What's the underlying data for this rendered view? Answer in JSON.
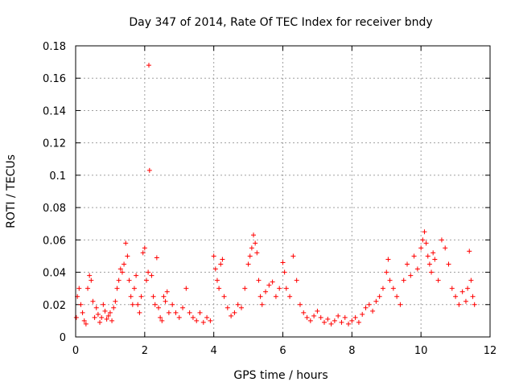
{
  "chart_data": {
    "type": "scatter",
    "title": "Day 347 of 2014, Rate Of TEC Index for receiver bndy",
    "xlabel": "GPS time / hours",
    "ylabel": "ROTI / TECUs",
    "xlim": [
      0,
      12
    ],
    "ylim": [
      0,
      0.18
    ],
    "xticks": [
      0,
      2,
      4,
      6,
      8,
      10,
      12
    ],
    "yticks": [
      0,
      0.02,
      0.04,
      0.06,
      0.08,
      0.1,
      0.12,
      0.14,
      0.16,
      0.18
    ],
    "xtick_labels": [
      "0",
      "2",
      "4",
      "6",
      "8",
      "10",
      "12"
    ],
    "ytick_labels": [
      "0",
      "0.02",
      "0.04",
      "0.06",
      "0.08",
      "0.1",
      "0.12",
      "0.14",
      "0.16",
      "0.18"
    ],
    "grid": true,
    "marker": "+",
    "color": "#ff0000",
    "series": [
      {
        "name": "ROTI",
        "points": [
          [
            0.02,
            0.012
          ],
          [
            0.05,
            0.025
          ],
          [
            0.1,
            0.03
          ],
          [
            0.15,
            0.02
          ],
          [
            0.2,
            0.015
          ],
          [
            0.25,
            0.01
          ],
          [
            0.3,
            0.008
          ],
          [
            0.35,
            0.03
          ],
          [
            0.4,
            0.038
          ],
          [
            0.45,
            0.035
          ],
          [
            0.5,
            0.022
          ],
          [
            0.55,
            0.012
          ],
          [
            0.6,
            0.018
          ],
          [
            0.65,
            0.014
          ],
          [
            0.7,
            0.009
          ],
          [
            0.75,
            0.012
          ],
          [
            0.8,
            0.02
          ],
          [
            0.85,
            0.016
          ],
          [
            0.9,
            0.011
          ],
          [
            0.95,
            0.013
          ],
          [
            1.0,
            0.015
          ],
          [
            1.05,
            0.01
          ],
          [
            1.1,
            0.018
          ],
          [
            1.15,
            0.022
          ],
          [
            1.2,
            0.03
          ],
          [
            1.25,
            0.035
          ],
          [
            1.3,
            0.042
          ],
          [
            1.35,
            0.04
          ],
          [
            1.4,
            0.045
          ],
          [
            1.45,
            0.058
          ],
          [
            1.5,
            0.05
          ],
          [
            1.55,
            0.035
          ],
          [
            1.6,
            0.025
          ],
          [
            1.65,
            0.02
          ],
          [
            1.7,
            0.03
          ],
          [
            1.75,
            0.038
          ],
          [
            1.8,
            0.02
          ],
          [
            1.85,
            0.015
          ],
          [
            1.9,
            0.025
          ],
          [
            1.95,
            0.052
          ],
          [
            2.0,
            0.055
          ],
          [
            2.05,
            0.035
          ],
          [
            2.1,
            0.04
          ],
          [
            2.12,
            0.168
          ],
          [
            2.14,
            0.103
          ],
          [
            2.2,
            0.038
          ],
          [
            2.25,
            0.025
          ],
          [
            2.3,
            0.02
          ],
          [
            2.35,
            0.049
          ],
          [
            2.4,
            0.018
          ],
          [
            2.45,
            0.012
          ],
          [
            2.5,
            0.01
          ],
          [
            2.55,
            0.025
          ],
          [
            2.6,
            0.022
          ],
          [
            2.65,
            0.028
          ],
          [
            2.7,
            0.015
          ],
          [
            2.8,
            0.02
          ],
          [
            2.9,
            0.015
          ],
          [
            3.0,
            0.012
          ],
          [
            3.1,
            0.018
          ],
          [
            3.2,
            0.03
          ],
          [
            3.3,
            0.015
          ],
          [
            3.4,
            0.012
          ],
          [
            3.5,
            0.01
          ],
          [
            3.6,
            0.015
          ],
          [
            3.7,
            0.009
          ],
          [
            3.8,
            0.012
          ],
          [
            3.9,
            0.01
          ],
          [
            4.0,
            0.05
          ],
          [
            4.05,
            0.042
          ],
          [
            4.1,
            0.035
          ],
          [
            4.15,
            0.03
          ],
          [
            4.2,
            0.045
          ],
          [
            4.25,
            0.048
          ],
          [
            4.3,
            0.025
          ],
          [
            4.4,
            0.018
          ],
          [
            4.5,
            0.013
          ],
          [
            4.6,
            0.015
          ],
          [
            4.7,
            0.02
          ],
          [
            4.8,
            0.018
          ],
          [
            4.9,
            0.03
          ],
          [
            5.0,
            0.045
          ],
          [
            5.05,
            0.05
          ],
          [
            5.1,
            0.055
          ],
          [
            5.15,
            0.063
          ],
          [
            5.2,
            0.058
          ],
          [
            5.25,
            0.052
          ],
          [
            5.3,
            0.035
          ],
          [
            5.35,
            0.025
          ],
          [
            5.4,
            0.02
          ],
          [
            5.5,
            0.028
          ],
          [
            5.6,
            0.032
          ],
          [
            5.7,
            0.034
          ],
          [
            5.8,
            0.025
          ],
          [
            5.9,
            0.03
          ],
          [
            6.0,
            0.046
          ],
          [
            6.05,
            0.04
          ],
          [
            6.1,
            0.03
          ],
          [
            6.2,
            0.025
          ],
          [
            6.3,
            0.05
          ],
          [
            6.4,
            0.035
          ],
          [
            6.5,
            0.02
          ],
          [
            6.6,
            0.015
          ],
          [
            6.7,
            0.012
          ],
          [
            6.8,
            0.01
          ],
          [
            6.9,
            0.013
          ],
          [
            7.0,
            0.016
          ],
          [
            7.1,
            0.012
          ],
          [
            7.2,
            0.009
          ],
          [
            7.3,
            0.011
          ],
          [
            7.4,
            0.008
          ],
          [
            7.5,
            0.01
          ],
          [
            7.6,
            0.013
          ],
          [
            7.7,
            0.009
          ],
          [
            7.8,
            0.012
          ],
          [
            7.9,
            0.008
          ],
          [
            8.0,
            0.01
          ],
          [
            8.1,
            0.012
          ],
          [
            8.2,
            0.009
          ],
          [
            8.3,
            0.014
          ],
          [
            8.4,
            0.018
          ],
          [
            8.5,
            0.02
          ],
          [
            8.6,
            0.016
          ],
          [
            8.7,
            0.022
          ],
          [
            8.8,
            0.025
          ],
          [
            8.9,
            0.03
          ],
          [
            9.0,
            0.04
          ],
          [
            9.05,
            0.048
          ],
          [
            9.1,
            0.035
          ],
          [
            9.2,
            0.03
          ],
          [
            9.3,
            0.025
          ],
          [
            9.4,
            0.02
          ],
          [
            9.5,
            0.035
          ],
          [
            9.6,
            0.045
          ],
          [
            9.7,
            0.038
          ],
          [
            9.8,
            0.05
          ],
          [
            9.9,
            0.042
          ],
          [
            10.0,
            0.055
          ],
          [
            10.05,
            0.06
          ],
          [
            10.1,
            0.065
          ],
          [
            10.15,
            0.058
          ],
          [
            10.2,
            0.05
          ],
          [
            10.25,
            0.045
          ],
          [
            10.3,
            0.04
          ],
          [
            10.35,
            0.052
          ],
          [
            10.4,
            0.048
          ],
          [
            10.5,
            0.035
          ],
          [
            10.6,
            0.06
          ],
          [
            10.7,
            0.055
          ],
          [
            10.8,
            0.045
          ],
          [
            10.9,
            0.03
          ],
          [
            11.0,
            0.025
          ],
          [
            11.1,
            0.02
          ],
          [
            11.2,
            0.028
          ],
          [
            11.3,
            0.022
          ],
          [
            11.35,
            0.03
          ],
          [
            11.4,
            0.053
          ],
          [
            11.45,
            0.035
          ],
          [
            11.5,
            0.025
          ],
          [
            11.55,
            0.02
          ]
        ]
      }
    ]
  }
}
